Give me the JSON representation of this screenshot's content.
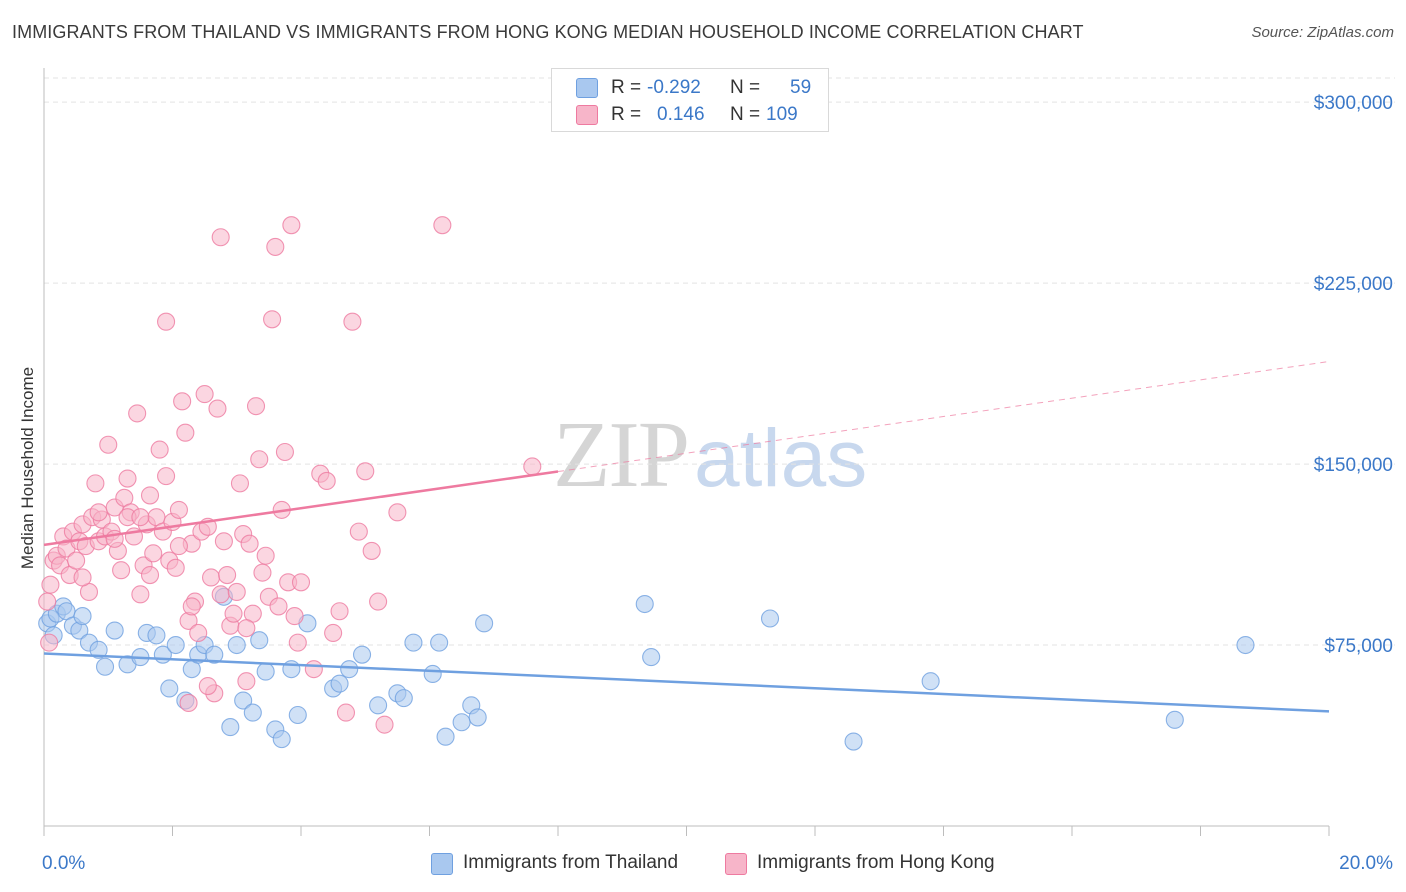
{
  "title": "IMMIGRANTS FROM THAILAND VS IMMIGRANTS FROM HONG KONG MEDIAN HOUSEHOLD INCOME CORRELATION CHART",
  "source": "Source: ZipAtlas.com",
  "watermark": {
    "zip": "ZIP",
    "atlas": "atlas"
  },
  "legend": {
    "rows": [
      {
        "r_label": "R =",
        "r_value": "-0.292",
        "n_label": "N =",
        "n_value": "59",
        "color": "#a9c8ef"
      },
      {
        "r_label": "R =",
        "r_value": "0.146",
        "n_label": "N =",
        "n_value": "109",
        "color": "#f7b5c9"
      }
    ]
  },
  "bottom_legend": [
    {
      "label": "Immigrants from Thailand",
      "color": "#a9c8ef"
    },
    {
      "label": "Immigrants from Hong Kong",
      "color": "#f7b5c9"
    }
  ],
  "chart_data": {
    "type": "scatter",
    "title": "IMMIGRANTS FROM THAILAND VS IMMIGRANTS FROM HONG KONG MEDIAN HOUSEHOLD INCOME CORRELATION CHART",
    "xlabel": "",
    "ylabel": "Median Household Income",
    "xlim": [
      0,
      20
    ],
    "ylim": [
      0,
      310000
    ],
    "x_tick_labels": [
      "0.0%",
      "20.0%"
    ],
    "y_ticks": [
      75000,
      150000,
      225000,
      300000
    ],
    "y_tick_labels": [
      "$75,000",
      "$150,000",
      "$225,000",
      "$300,000"
    ],
    "grid": true,
    "series": [
      {
        "name": "Immigrants from Thailand",
        "color": "#6fa0e0",
        "fill": "#a9c8ef",
        "r": -0.292,
        "n": 59,
        "trend": {
          "x0": 0,
          "y0": 71500,
          "x1": 20,
          "y1": 47500,
          "solid_until": 20
        },
        "points": [
          [
            0.05,
            84000
          ],
          [
            0.1,
            86000
          ],
          [
            0.15,
            79000
          ],
          [
            0.2,
            88000
          ],
          [
            0.3,
            91000
          ],
          [
            0.35,
            89000
          ],
          [
            0.45,
            83000
          ],
          [
            0.55,
            81000
          ],
          [
            0.6,
            87000
          ],
          [
            0.7,
            76000
          ],
          [
            0.85,
            73000
          ],
          [
            0.95,
            66000
          ],
          [
            1.1,
            81000
          ],
          [
            1.3,
            67000
          ],
          [
            1.5,
            70000
          ],
          [
            1.6,
            80000
          ],
          [
            1.75,
            79000
          ],
          [
            1.85,
            71000
          ],
          [
            1.95,
            57000
          ],
          [
            2.05,
            75000
          ],
          [
            2.2,
            52000
          ],
          [
            2.3,
            65000
          ],
          [
            2.4,
            71000
          ],
          [
            2.5,
            75000
          ],
          [
            2.65,
            71000
          ],
          [
            2.8,
            95000
          ],
          [
            2.9,
            41000
          ],
          [
            3.0,
            75000
          ],
          [
            3.1,
            52000
          ],
          [
            3.25,
            47000
          ],
          [
            3.35,
            77000
          ],
          [
            3.45,
            64000
          ],
          [
            3.6,
            40000
          ],
          [
            3.7,
            36000
          ],
          [
            3.85,
            65000
          ],
          [
            3.95,
            46000
          ],
          [
            4.1,
            84000
          ],
          [
            4.5,
            57000
          ],
          [
            4.6,
            59000
          ],
          [
            4.75,
            65000
          ],
          [
            4.95,
            71000
          ],
          [
            5.2,
            50000
          ],
          [
            5.5,
            55000
          ],
          [
            5.6,
            53000
          ],
          [
            5.75,
            76000
          ],
          [
            6.05,
            63000
          ],
          [
            6.15,
            76000
          ],
          [
            6.25,
            37000
          ],
          [
            6.5,
            43000
          ],
          [
            6.65,
            50000
          ],
          [
            6.75,
            45000
          ],
          [
            6.85,
            84000
          ],
          [
            9.35,
            92000
          ],
          [
            9.45,
            70000
          ],
          [
            11.3,
            86000
          ],
          [
            12.6,
            35000
          ],
          [
            13.8,
            60000
          ],
          [
            17.6,
            44000
          ],
          [
            18.7,
            75000
          ]
        ]
      },
      {
        "name": "Immigrants from Hong Kong",
        "color": "#ee7aa0",
        "fill": "#f7b5c9",
        "r": 0.146,
        "n": 109,
        "trend": {
          "x0": 0,
          "y0": 116500,
          "x1": 20,
          "y1": 192500,
          "solid_until": 8.0
        },
        "points": [
          [
            0.05,
            93000
          ],
          [
            0.08,
            76000
          ],
          [
            0.1,
            100000
          ],
          [
            0.15,
            110000
          ],
          [
            0.2,
            112000
          ],
          [
            0.25,
            108000
          ],
          [
            0.3,
            120000
          ],
          [
            0.35,
            115000
          ],
          [
            0.4,
            104000
          ],
          [
            0.45,
            122000
          ],
          [
            0.5,
            110000
          ],
          [
            0.55,
            118000
          ],
          [
            0.6,
            125000
          ],
          [
            0.65,
            116000
          ],
          [
            0.7,
            97000
          ],
          [
            0.75,
            128000
          ],
          [
            0.8,
            142000
          ],
          [
            0.85,
            118000
          ],
          [
            0.9,
            127000
          ],
          [
            0.95,
            120000
          ],
          [
            1.0,
            158000
          ],
          [
            1.05,
            122000
          ],
          [
            1.1,
            132000
          ],
          [
            1.15,
            114000
          ],
          [
            1.2,
            106000
          ],
          [
            1.25,
            136000
          ],
          [
            1.3,
            144000
          ],
          [
            1.35,
            130000
          ],
          [
            1.4,
            120000
          ],
          [
            1.45,
            171000
          ],
          [
            1.5,
            96000
          ],
          [
            1.55,
            108000
          ],
          [
            1.6,
            125000
          ],
          [
            1.65,
            137000
          ],
          [
            1.7,
            113000
          ],
          [
            1.75,
            128000
          ],
          [
            1.8,
            156000
          ],
          [
            1.85,
            122000
          ],
          [
            1.9,
            145000
          ],
          [
            1.95,
            110000
          ],
          [
            2.0,
            126000
          ],
          [
            2.05,
            107000
          ],
          [
            2.1,
            131000
          ],
          [
            2.15,
            176000
          ],
          [
            2.2,
            163000
          ],
          [
            2.25,
            85000
          ],
          [
            2.3,
            117000
          ],
          [
            2.35,
            93000
          ],
          [
            2.4,
            80000
          ],
          [
            2.45,
            122000
          ],
          [
            2.5,
            179000
          ],
          [
            2.55,
            124000
          ],
          [
            2.6,
            103000
          ],
          [
            2.65,
            55000
          ],
          [
            2.7,
            173000
          ],
          [
            2.75,
            96000
          ],
          [
            2.8,
            118000
          ],
          [
            2.85,
            104000
          ],
          [
            2.9,
            83000
          ],
          [
            2.95,
            88000
          ],
          [
            3.0,
            97000
          ],
          [
            3.05,
            142000
          ],
          [
            3.1,
            121000
          ],
          [
            3.15,
            60000
          ],
          [
            3.2,
            117000
          ],
          [
            3.25,
            88000
          ],
          [
            3.3,
            174000
          ],
          [
            3.35,
            152000
          ],
          [
            3.4,
            105000
          ],
          [
            3.45,
            112000
          ],
          [
            3.5,
            95000
          ],
          [
            3.55,
            210000
          ],
          [
            3.6,
            240000
          ],
          [
            3.65,
            91000
          ],
          [
            3.7,
            131000
          ],
          [
            3.75,
            155000
          ],
          [
            3.8,
            101000
          ],
          [
            3.85,
            249000
          ],
          [
            3.9,
            87000
          ],
          [
            3.95,
            76000
          ],
          [
            4.0,
            101000
          ],
          [
            4.2,
            65000
          ],
          [
            4.3,
            146000
          ],
          [
            4.4,
            143000
          ],
          [
            4.5,
            80000
          ],
          [
            4.6,
            89000
          ],
          [
            4.7,
            47000
          ],
          [
            4.8,
            209000
          ],
          [
            4.9,
            122000
          ],
          [
            5.0,
            147000
          ],
          [
            5.1,
            114000
          ],
          [
            5.2,
            93000
          ],
          [
            5.3,
            42000
          ],
          [
            5.5,
            130000
          ],
          [
            6.2,
            249000
          ],
          [
            7.6,
            149000
          ],
          [
            1.65,
            104000
          ],
          [
            1.9,
            209000
          ],
          [
            2.1,
            116000
          ],
          [
            2.3,
            91000
          ],
          [
            2.55,
            58000
          ],
          [
            2.75,
            244000
          ],
          [
            3.15,
            82000
          ],
          [
            0.6,
            103000
          ],
          [
            0.85,
            130000
          ],
          [
            1.1,
            119000
          ],
          [
            1.3,
            128000
          ],
          [
            1.5,
            128000
          ],
          [
            2.25,
            51000
          ]
        ]
      }
    ]
  }
}
